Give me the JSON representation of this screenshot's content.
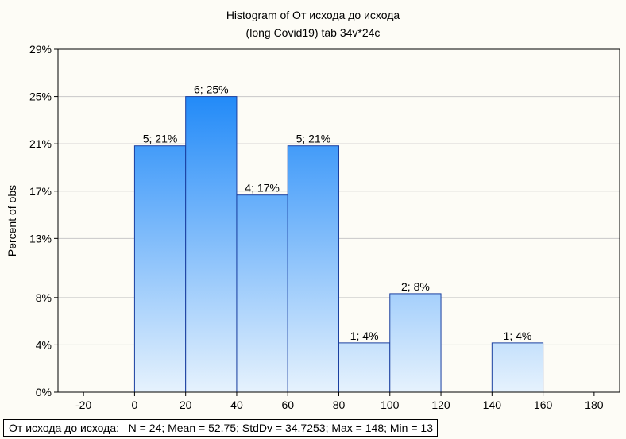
{
  "chart_data": {
    "type": "histogram",
    "title": "Histogram of От исхода до исхода",
    "subtitle": "(long Covid19) tab 34v*24c",
    "xlabel": "",
    "ylabel": "Percent of obs",
    "xlim": [
      -30,
      190
    ],
    "ylim": [
      0,
      29
    ],
    "x_ticks": [
      -20,
      0,
      20,
      40,
      60,
      80,
      100,
      120,
      140,
      160,
      180
    ],
    "x_tick_labels": [
      "-20",
      "0",
      "20",
      "40",
      "60",
      "80",
      "100",
      "120",
      "140",
      "160",
      "180"
    ],
    "y_ticks": [
      0,
      4,
      8,
      13,
      17,
      21,
      25,
      29
    ],
    "y_tick_labels": [
      "0%",
      "4%",
      "8%",
      "13%",
      "17%",
      "21%",
      "25%",
      "29%"
    ],
    "grid": true,
    "bins": [
      {
        "x0": 0,
        "x1": 20,
        "count": 5,
        "percent": 20.83,
        "label": "5; 21%"
      },
      {
        "x0": 20,
        "x1": 40,
        "count": 6,
        "percent": 25.0,
        "label": "6; 25%"
      },
      {
        "x0": 40,
        "x1": 60,
        "count": 4,
        "percent": 16.67,
        "label": "4; 17%"
      },
      {
        "x0": 60,
        "x1": 80,
        "count": 5,
        "percent": 20.83,
        "label": "5; 21%"
      },
      {
        "x0": 80,
        "x1": 100,
        "count": 1,
        "percent": 4.17,
        "label": "1; 4%"
      },
      {
        "x0": 100,
        "x1": 120,
        "count": 2,
        "percent": 8.33,
        "label": "2; 8%"
      },
      {
        "x0": 140,
        "x1": 160,
        "count": 1,
        "percent": 4.17,
        "label": "1; 4%"
      }
    ],
    "bar_color_top": "#1e88f8",
    "bar_color_bottom": "#e6f2fd",
    "bar_edge_color": "#1a3fa0",
    "stats": "От исхода до исхода:   N = 24; Mean = 52.75; StdDv = 34.7253; Max = 148; Min = 13"
  }
}
